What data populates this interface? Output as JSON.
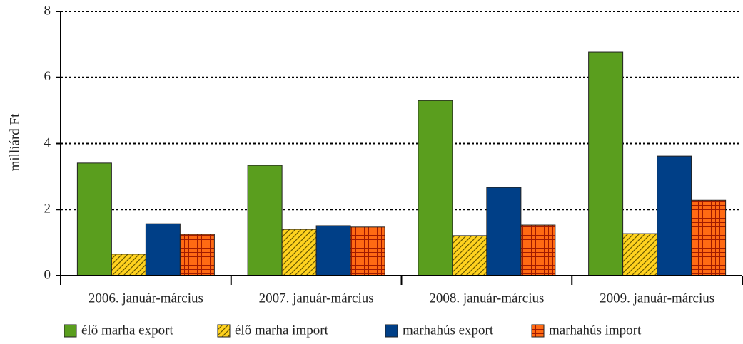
{
  "chart_data": {
    "type": "bar",
    "y_label": "milliárd Ft",
    "categories": [
      "2006. január-március",
      "2007. január-március",
      "2008. január-március",
      "2009. január-március"
    ],
    "series": [
      {
        "name": "élő marha export",
        "color": "#5a9e1e",
        "values": [
          3.41,
          3.34,
          5.3,
          6.77
        ]
      },
      {
        "name": "élő marha import",
        "color": "#ffd21f",
        "pattern": "hatch",
        "values": [
          0.65,
          1.4,
          1.21,
          1.27
        ]
      },
      {
        "name": "marhahús export",
        "color": "#003f87",
        "values": [
          1.57,
          1.51,
          2.67,
          3.62
        ]
      },
      {
        "name": "marhahús import",
        "color": "#ff6a13",
        "pattern": "grid",
        "values": [
          1.25,
          1.47,
          1.53,
          2.28
        ]
      }
    ],
    "ylim": [
      0,
      8
    ],
    "yticks": [
      0,
      2,
      4,
      6,
      8
    ],
    "grid": true,
    "legend": "bottom"
  }
}
